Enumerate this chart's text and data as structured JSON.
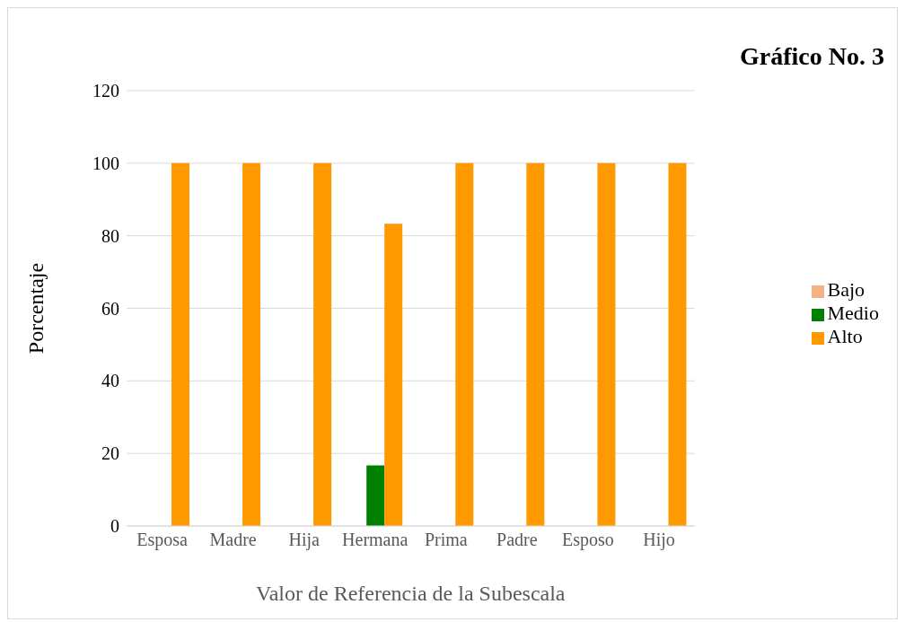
{
  "chart_data": {
    "type": "bar",
    "title": "Gráfico No. 3",
    "xlabel": "Valor de Referencia de la Subescala",
    "ylabel": "Porcentaje",
    "categories": [
      "Esposa",
      "Madre",
      "Hija",
      "Hermana",
      "Prima",
      "Padre",
      "Esposo",
      "Hijo"
    ],
    "series": [
      {
        "name": "Bajo",
        "color": "#f4b183",
        "values": [
          0,
          0,
          0,
          0,
          0,
          0,
          0,
          0
        ]
      },
      {
        "name": "Medio",
        "color": "#008000",
        "values": [
          0,
          0,
          0,
          16.7,
          0,
          0,
          0,
          0
        ]
      },
      {
        "name": "Alto",
        "color": "#ff9900",
        "values": [
          100,
          100,
          100,
          83.3,
          100,
          100,
          100,
          100
        ]
      }
    ],
    "ylim": [
      0,
      120
    ],
    "yticks": [
      0,
      20,
      40,
      60,
      80,
      100,
      120
    ],
    "grid": "y",
    "legend": "right"
  }
}
